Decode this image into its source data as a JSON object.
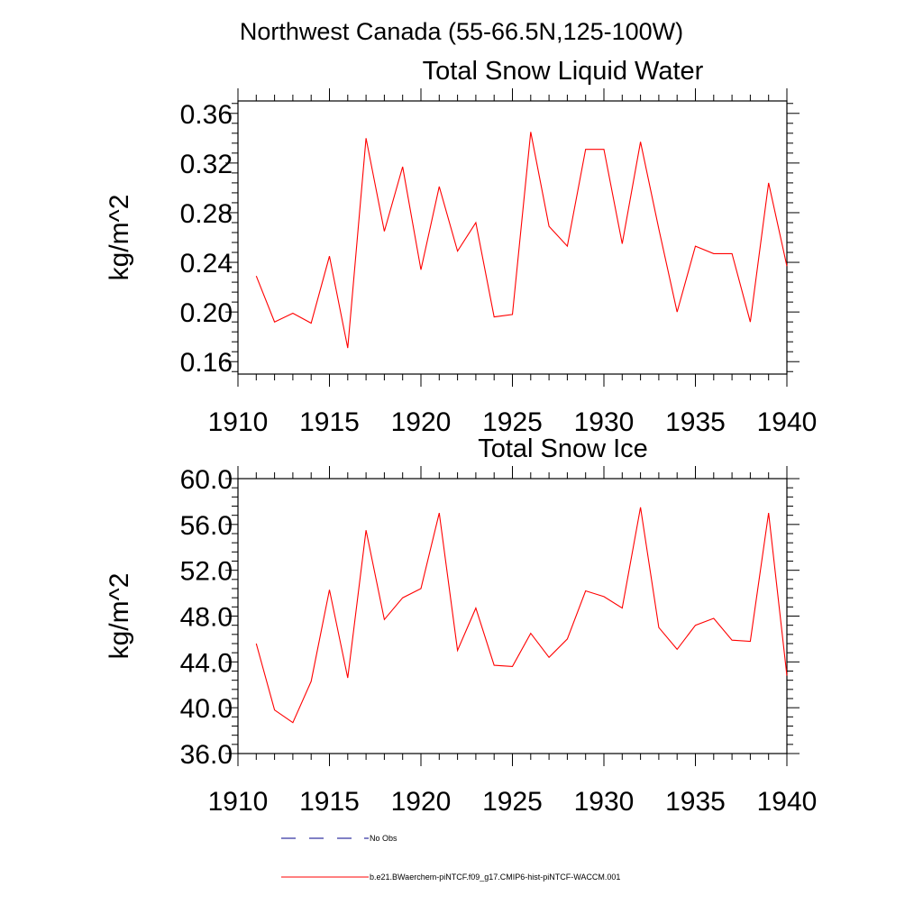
{
  "figure": {
    "suptitle": "Northwest Canada (55-66.5N,125-100W)"
  },
  "legend": {
    "items": [
      {
        "label": "No Obs",
        "color": "#00008b",
        "style": "dashed"
      },
      {
        "label": "b.e21.BWaerchem-piNTCF.f09_g17.CMIP6-hist-piNTCF-WACCM.001",
        "color": "#ff0000",
        "style": "solid"
      }
    ]
  },
  "chart_data": [
    {
      "type": "line",
      "title": "Total Snow Liquid Water",
      "ylabel": "kg/m^2",
      "xlabel": "",
      "xlim": [
        1910,
        1940
      ],
      "ylim": [
        0.15,
        0.37
      ],
      "xticks": [
        1910,
        1915,
        1920,
        1925,
        1930,
        1935,
        1940
      ],
      "xticklabels": [
        "1910",
        "1915",
        "1920",
        "1925",
        "1930",
        "1935",
        "1940"
      ],
      "yticks": [
        0.16,
        0.2,
        0.24,
        0.28,
        0.32,
        0.36
      ],
      "yticklabels": [
        "0.16",
        "0.20",
        "0.24",
        "0.28",
        "0.32",
        "0.36"
      ],
      "grid": false,
      "x": [
        1911,
        1912,
        1913,
        1914,
        1915,
        1916,
        1917,
        1918,
        1919,
        1920,
        1921,
        1922,
        1923,
        1924,
        1925,
        1926,
        1927,
        1928,
        1929,
        1930,
        1931,
        1932,
        1933,
        1934,
        1935,
        1936,
        1937,
        1938,
        1939,
        1940
      ],
      "series": [
        {
          "name": "b.e21.BWaerchem-piNTCF.f09_g17.CMIP6-hist-piNTCF-WACCM.001",
          "color": "#ff0000",
          "values": [
            0.229,
            0.192,
            0.199,
            0.191,
            0.245,
            0.171,
            0.34,
            0.265,
            0.317,
            0.234,
            0.301,
            0.249,
            0.272,
            0.196,
            0.198,
            0.345,
            0.269,
            0.253,
            0.331,
            0.331,
            0.255,
            0.337,
            0.267,
            0.2,
            0.253,
            0.247,
            0.247,
            0.192,
            0.304,
            0.237
          ]
        }
      ]
    },
    {
      "type": "line",
      "title": "Total Snow Ice",
      "ylabel": "kg/m^2",
      "xlabel": "",
      "xlim": [
        1910,
        1940
      ],
      "ylim": [
        36.0,
        60.0
      ],
      "xticks": [
        1910,
        1915,
        1920,
        1925,
        1930,
        1935,
        1940
      ],
      "xticklabels": [
        "1910",
        "1915",
        "1920",
        "1925",
        "1930",
        "1935",
        "1940"
      ],
      "yticks": [
        36.0,
        40.0,
        44.0,
        48.0,
        52.0,
        56.0,
        60.0
      ],
      "yticklabels": [
        "36.0",
        "40.0",
        "44.0",
        "48.0",
        "52.0",
        "56.0",
        "60.0"
      ],
      "grid": false,
      "x": [
        1911,
        1912,
        1913,
        1914,
        1915,
        1916,
        1917,
        1918,
        1919,
        1920,
        1921,
        1922,
        1923,
        1924,
        1925,
        1926,
        1927,
        1928,
        1929,
        1930,
        1931,
        1932,
        1933,
        1934,
        1935,
        1936,
        1937,
        1938,
        1939,
        1940
      ],
      "series": [
        {
          "name": "b.e21.BWaerchem-piNTCF.f09_g17.CMIP6-hist-piNTCF-WACCM.001",
          "color": "#ff0000",
          "values": [
            45.6,
            39.8,
            38.7,
            42.3,
            50.3,
            42.6,
            55.5,
            47.7,
            49.6,
            50.4,
            57.0,
            45.0,
            48.7,
            43.7,
            43.6,
            46.5,
            44.4,
            46.0,
            50.2,
            49.7,
            48.7,
            57.5,
            47.0,
            45.1,
            47.2,
            47.8,
            45.9,
            45.8,
            57.0,
            42.8
          ]
        }
      ]
    }
  ]
}
